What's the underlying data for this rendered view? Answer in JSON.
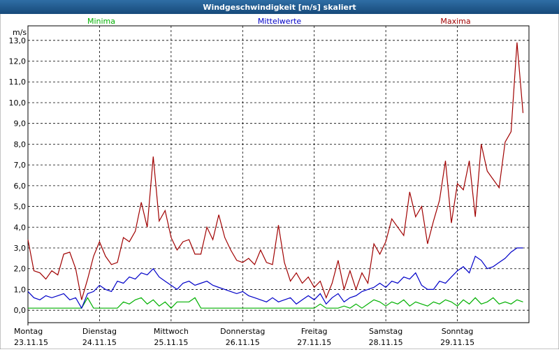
{
  "chart_data": {
    "type": "line",
    "title": "Windgeschwindigkeit [m/s] skaliert",
    "y_label": "m/s",
    "xlim": [
      0,
      168
    ],
    "xticks": [
      {
        "value": 0,
        "label": "Montag",
        "date": "23.11.15"
      },
      {
        "value": 24,
        "label": "Dienstag",
        "date": "24.11.15"
      },
      {
        "value": 48,
        "label": "Mittwoch",
        "date": "25.11.15"
      },
      {
        "value": 72,
        "label": "Donnerstag",
        "date": "26.11.15"
      },
      {
        "value": 96,
        "label": "Freitag",
        "date": "27.11.15"
      },
      {
        "value": 120,
        "label": "Samstag",
        "date": "28.11.15"
      },
      {
        "value": 144,
        "label": "Sonntag",
        "date": "29.11.15"
      }
    ],
    "ylim": [
      -0.6,
      13.7
    ],
    "yticks": [
      {
        "value": 0,
        "label": "0,0"
      },
      {
        "value": 1,
        "label": "1,0"
      },
      {
        "value": 2,
        "label": "2,0"
      },
      {
        "value": 3,
        "label": "3,0"
      },
      {
        "value": 4,
        "label": "4,0"
      },
      {
        "value": 5,
        "label": "5,0"
      },
      {
        "value": 6,
        "label": "6,0"
      },
      {
        "value": 7,
        "label": "7,0"
      },
      {
        "value": 8,
        "label": "8,0"
      },
      {
        "value": 9,
        "label": "9,0"
      },
      {
        "value": 10,
        "label": "10,0"
      },
      {
        "value": 11,
        "label": "11,0"
      },
      {
        "value": 12,
        "label": "12,0"
      },
      {
        "value": 13,
        "label": "13,0"
      }
    ],
    "grid": true,
    "x": [
      0,
      2,
      4,
      6,
      8,
      10,
      12,
      14,
      16,
      18,
      20,
      22,
      24,
      26,
      28,
      30,
      32,
      34,
      36,
      38,
      40,
      42,
      44,
      46,
      48,
      50,
      52,
      54,
      56,
      58,
      60,
      62,
      64,
      66,
      68,
      70,
      72,
      74,
      76,
      78,
      80,
      82,
      84,
      86,
      88,
      90,
      92,
      94,
      96,
      98,
      100,
      102,
      104,
      106,
      108,
      110,
      112,
      114,
      116,
      118,
      120,
      122,
      124,
      126,
      128,
      130,
      132,
      134,
      136,
      138,
      140,
      142,
      144,
      146,
      148,
      150,
      152,
      154,
      156,
      158,
      160,
      162,
      164,
      166
    ],
    "series": [
      {
        "name": "Minima",
        "color": "#00b000",
        "values": [
          0.1,
          0.1,
          0.1,
          0.1,
          0.1,
          0.1,
          0.1,
          0.1,
          0.1,
          0.1,
          0.6,
          0.1,
          0.1,
          0.1,
          0.1,
          0.1,
          0.4,
          0.3,
          0.5,
          0.6,
          0.3,
          0.5,
          0.2,
          0.4,
          0.1,
          0.4,
          0.4,
          0.4,
          0.6,
          0.1,
          0.1,
          0.1,
          0.1,
          0.1,
          0.1,
          0.1,
          0.1,
          0.1,
          0.1,
          0.1,
          0.1,
          0.1,
          0.1,
          0.1,
          0.1,
          0.1,
          0.1,
          0.1,
          0.1,
          0.3,
          0.1,
          0.1,
          0.1,
          0.2,
          0.1,
          0.3,
          0.1,
          0.3,
          0.5,
          0.4,
          0.2,
          0.4,
          0.3,
          0.5,
          0.2,
          0.4,
          0.3,
          0.2,
          0.4,
          0.3,
          0.5,
          0.4,
          0.2,
          0.5,
          0.3,
          0.6,
          0.3,
          0.4,
          0.6,
          0.3,
          0.4,
          0.3,
          0.5,
          0.4
        ]
      },
      {
        "name": "Mittelwerte",
        "color": "#0000c8",
        "values": [
          0.9,
          0.6,
          0.5,
          0.7,
          0.6,
          0.7,
          0.8,
          0.5,
          0.6,
          0.1,
          0.8,
          0.9,
          1.2,
          1.0,
          0.9,
          1.4,
          1.3,
          1.6,
          1.5,
          1.8,
          1.7,
          2.0,
          1.6,
          1.4,
          1.2,
          1.0,
          1.3,
          1.4,
          1.2,
          1.3,
          1.4,
          1.2,
          1.1,
          1.0,
          0.9,
          0.8,
          0.9,
          0.7,
          0.6,
          0.5,
          0.4,
          0.6,
          0.4,
          0.5,
          0.6,
          0.3,
          0.5,
          0.7,
          0.5,
          0.8,
          0.3,
          0.6,
          0.8,
          0.4,
          0.6,
          0.7,
          0.9,
          1.0,
          1.1,
          1.3,
          1.1,
          1.4,
          1.3,
          1.6,
          1.5,
          1.8,
          1.2,
          1.0,
          1.0,
          1.4,
          1.3,
          1.6,
          1.9,
          2.1,
          1.8,
          2.6,
          2.4,
          2.0,
          2.1,
          2.3,
          2.5,
          2.8,
          3.0,
          3.0
        ]
      },
      {
        "name": "Maxima",
        "color": "#a00000",
        "values": [
          3.4,
          1.9,
          1.8,
          1.5,
          1.9,
          1.7,
          2.7,
          2.8,
          2.0,
          0.5,
          1.5,
          2.6,
          3.3,
          2.6,
          2.2,
          2.3,
          3.5,
          3.3,
          3.8,
          5.2,
          4.0,
          7.4,
          4.3,
          4.8,
          3.5,
          2.9,
          3.3,
          3.4,
          2.7,
          2.7,
          4.0,
          3.4,
          4.6,
          3.5,
          2.9,
          2.4,
          2.3,
          2.5,
          2.2,
          2.9,
          2.3,
          2.2,
          4.1,
          2.3,
          1.4,
          1.8,
          1.3,
          1.6,
          1.1,
          1.4,
          0.6,
          1.3,
          2.4,
          1.0,
          1.9,
          1.0,
          1.8,
          1.3,
          3.2,
          2.7,
          3.3,
          4.4,
          4.0,
          3.6,
          5.7,
          4.5,
          5.0,
          3.2,
          4.3,
          5.3,
          7.2,
          4.2,
          6.1,
          5.8,
          7.2,
          4.5,
          8.0,
          6.7,
          6.3,
          5.9,
          8.1,
          8.6,
          12.9,
          9.5
        ]
      }
    ]
  }
}
